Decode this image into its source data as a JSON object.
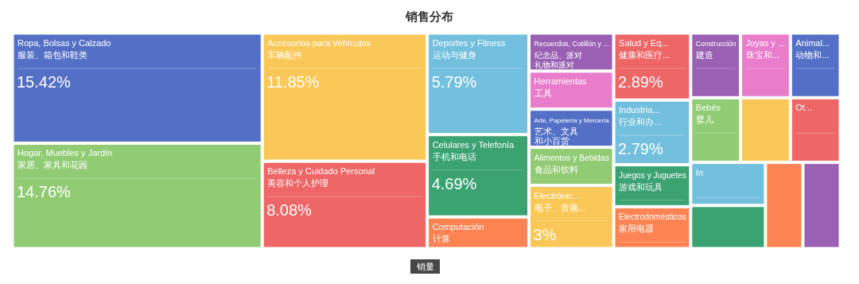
{
  "chart_data": {
    "type": "other",
    "title": "销售分布",
    "annotations": [
      "销量"
    ],
    "categories": [
      "Ropa, Bolsas y Calzado\n服装、箱包和鞋类",
      "Hogar, Muebles y Jardín\n家居、家具和花园",
      "Accesorios para Vehículos\n车辆配件",
      "Belleza y Cuidado Personal\n美容和个人护理",
      "Deportes y Fitness\n运动与健身",
      "Celulares y Telefonía\n手机和电话",
      "Computación\n计算",
      "Recuerdos, Cotillón y ...\n纪念品、派对礼物和派对",
      "Herramientas\n工具",
      "Arte, Papelería y Mercería\n艺术、文具和小百货",
      "Alimentos y Bebidas\n食品和饮料",
      "Electrónic...\n电子、音频...",
      "Salud y Eq...\n健康和医疗...",
      "Industria...\n行业和办...",
      "Juegos y Juguetes\n游戏和玩具",
      "Electrodomésticos\n家用电器",
      "Construcción\n建造",
      "Joyas y ...\n珠宝和...",
      "Animal...\n动物和...",
      "Bebés\n婴儿",
      null,
      "Ot...",
      "In",
      null,
      null,
      null
    ],
    "values": [
      15.42,
      14.76,
      11.85,
      8.08,
      5.79,
      4.69,
      null,
      null,
      null,
      null,
      null,
      3,
      2.89,
      2.79,
      null,
      null,
      null,
      null,
      null,
      null,
      null,
      null,
      null,
      null,
      null,
      null
    ],
    "value_labels": [
      "15.42%",
      "14.76%",
      "11.85%",
      "8.08%",
      "5.79%",
      "4.69%",
      null,
      null,
      null,
      null,
      null,
      "3%",
      "2.89%",
      "2.79%",
      null,
      null,
      null,
      null,
      null,
      null,
      null,
      null,
      null,
      null,
      null,
      null
    ],
    "colors": [
      "#5470c6",
      "#91cc75",
      "#fac858",
      "#ee6666",
      "#73c0de",
      "#3ba272",
      "#fc8452",
      "#9a60b4",
      "#ea7ccc",
      "#5470c6",
      "#91cc75",
      "#fac858",
      "#ee6666",
      "#73c0de",
      "#3ba272",
      "#fc8452",
      "#9a60b4",
      "#ea7ccc",
      "#5470c6",
      "#91cc75",
      "#fac858",
      "#ee6666",
      "#73c0de",
      "#3ba272",
      "#fc8452",
      "#9a60b4"
    ]
  }
}
